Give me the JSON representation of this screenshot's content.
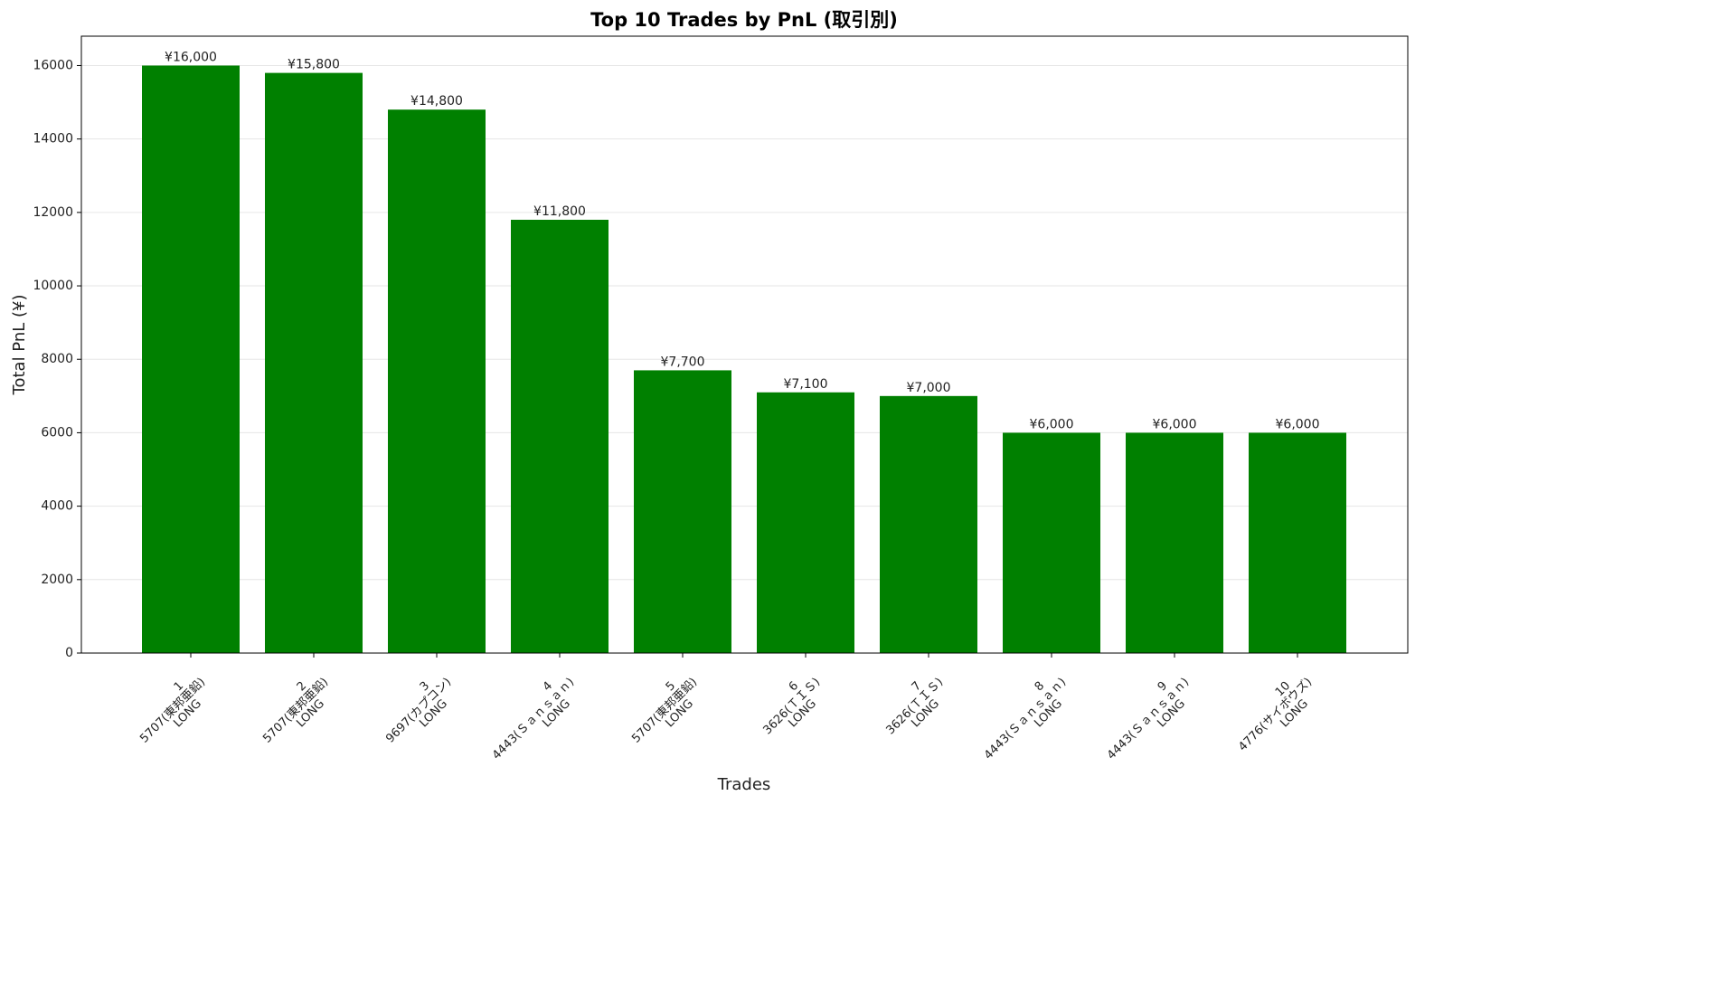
{
  "chart_data": {
    "type": "bar",
    "title": "Top 10 Trades by PnL (取引別)",
    "x_label": "Trades",
    "y_label": "Total PnL (¥)",
    "categories": [
      [
        "1",
        "5707(東邦亜鉛)",
        "LONG"
      ],
      [
        "2",
        "5707(東邦亜鉛)",
        "LONG"
      ],
      [
        "3",
        "9697(カプコン)",
        "LONG"
      ],
      [
        "4",
        "4443(Ｓａｎｓａｎ)",
        "LONG"
      ],
      [
        "5",
        "5707(東邦亜鉛)",
        "LONG"
      ],
      [
        "6",
        "3626(ＴＩＳ)",
        "LONG"
      ],
      [
        "7",
        "3626(ＴＩＳ)",
        "LONG"
      ],
      [
        "8",
        "4443(Ｓａｎｓａｎ)",
        "LONG"
      ],
      [
        "9",
        "4443(Ｓａｎｓａｎ)",
        "LONG"
      ],
      [
        "10",
        "4776(サイボウズ)",
        "LONG"
      ]
    ],
    "values": [
      16000,
      15800,
      14800,
      11800,
      7700,
      7100,
      7000,
      6000,
      6000,
      6000
    ],
    "value_labels": [
      "¥16,000",
      "¥15,800",
      "¥14,800",
      "¥11,800",
      "¥7,700",
      "¥7,100",
      "¥7,000",
      "¥6,000",
      "¥6,000",
      "¥6,000"
    ],
    "color": "#008000",
    "ylim": [
      0,
      16800
    ],
    "yticks": [
      0,
      2000,
      4000,
      6000,
      8000,
      10000,
      12000,
      14000,
      16000
    ],
    "grid": true
  }
}
